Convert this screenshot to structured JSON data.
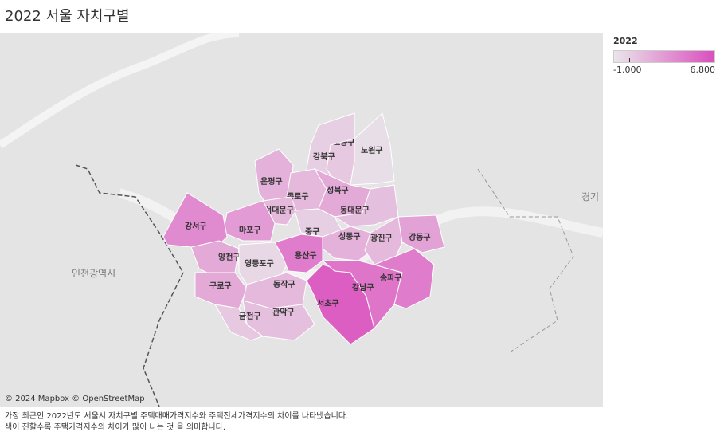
{
  "title": "2022 서울 자치구별",
  "legend": {
    "title": "2022",
    "min_label": "-1.000",
    "max_label": "6.800",
    "low_color": "#e9e6e9",
    "high_color": "#da4fbe"
  },
  "map": {
    "attribution": "© 2024 Mapbox © OpenStreetMap",
    "city_labels": [
      "인천광역시",
      "경기"
    ],
    "districts": [
      {
        "name": "도봉구",
        "level": 0.2
      },
      {
        "name": "노원구",
        "level": 0.05
      },
      {
        "name": "강북구",
        "level": 0.15
      },
      {
        "name": "은평구",
        "level": 0.35
      },
      {
        "name": "종로구",
        "level": 0.3
      },
      {
        "name": "성북구",
        "level": 0.4
      },
      {
        "name": "서대문구",
        "level": 0.3
      },
      {
        "name": "동대문구",
        "level": 0.25
      },
      {
        "name": "중구",
        "level": 0.15
      },
      {
        "name": "마포구",
        "level": 0.5
      },
      {
        "name": "강서구",
        "level": 0.6
      },
      {
        "name": "양천구",
        "level": 0.4
      },
      {
        "name": "영등포구",
        "level": 0.1
      },
      {
        "name": "용산구",
        "level": 0.7
      },
      {
        "name": "성동구",
        "level": 0.35
      },
      {
        "name": "광진구",
        "level": 0.3
      },
      {
        "name": "강동구",
        "level": 0.45
      },
      {
        "name": "구로구",
        "level": 0.4
      },
      {
        "name": "동작구",
        "level": 0.3
      },
      {
        "name": "관악구",
        "level": 0.25
      },
      {
        "name": "금천구",
        "level": 0.2
      },
      {
        "name": "서초구",
        "level": 0.9
      },
      {
        "name": "강남구",
        "level": 0.75
      },
      {
        "name": "송파구",
        "level": 0.7
      }
    ]
  },
  "caption": {
    "line1": "가장 최근인  2022년도 서울시  자치구별 주택매매가격지수와  주택전세가격지수의 차이를 나타냈습니다.",
    "line2": "색이 진할수록 주택가격지수의 차이가 많이 나는 것 을 의미합니다."
  }
}
